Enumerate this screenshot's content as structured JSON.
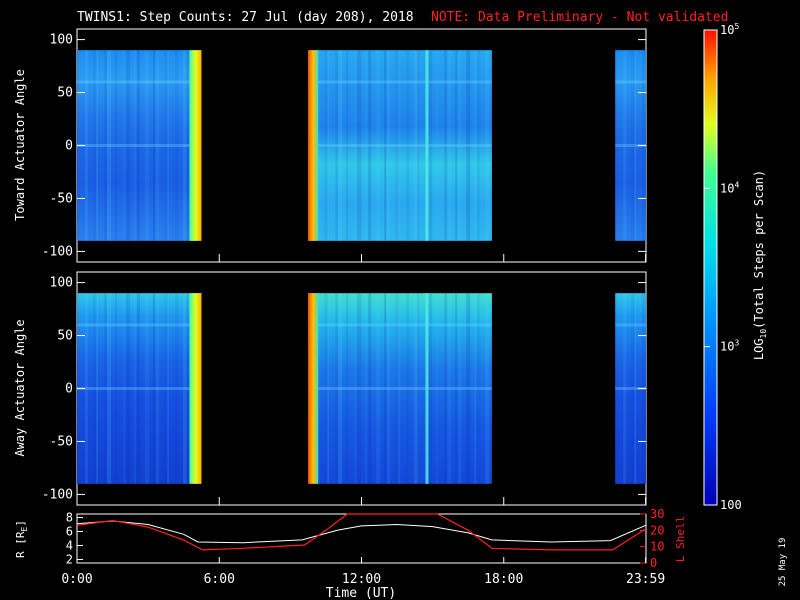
{
  "header": {
    "title": "TWINS1: Step Counts: 27 Jul (day 208), 2018",
    "note": "NOTE: Data Preliminary - Not validated"
  },
  "footer": {
    "date_stamp": "25 May 19"
  },
  "colors": {
    "background": "#000000",
    "axes": "#ffffff",
    "note": "#ff2020",
    "r_line": "#ffffff",
    "lshell_line": "#ff2020"
  },
  "chart_data": [
    {
      "type": "heatmap",
      "panel": "top",
      "ylabel": "Toward Actuator Angle",
      "ylim": [
        -110,
        110
      ],
      "yticks": [
        -100,
        -50,
        0,
        50,
        100
      ],
      "ytick_labels": [
        "-100",
        "-50",
        "0",
        "50",
        "100"
      ],
      "y_data_range": [
        -90,
        90
      ],
      "xlim_hours": [
        0,
        24
      ],
      "data_blocks_hours": [
        [
          0,
          5.25
        ],
        [
          9.75,
          17.5
        ],
        [
          22.7,
          24
        ]
      ],
      "colormap": "rainbow",
      "value_scale": "log"
    },
    {
      "type": "heatmap",
      "panel": "middle",
      "ylabel": "Away Actuator Angle",
      "ylim": [
        -110,
        110
      ],
      "yticks": [
        -100,
        -50,
        0,
        50,
        100
      ],
      "ytick_labels": [
        "-100",
        "-50",
        "0",
        "50",
        "100"
      ],
      "y_data_range": [
        -90,
        90
      ],
      "xlim_hours": [
        0,
        24
      ],
      "data_blocks_hours": [
        [
          0,
          5.25
        ],
        [
          9.75,
          17.5
        ],
        [
          22.7,
          24
        ]
      ],
      "colormap": "rainbow",
      "value_scale": "log"
    },
    {
      "type": "line",
      "panel": "orbit",
      "xlabel": "Time (UT)",
      "x_ticks_hours": [
        0,
        6,
        12,
        18,
        23.983
      ],
      "x_tick_labels": [
        "0:00",
        "6:00",
        "12:00",
        "18:00",
        "23:59"
      ],
      "ylabel_left": "R [R",
      "ylabel_left_sub": "E",
      "ylabel_left_close": "]",
      "ylim_left": [
        1.5,
        8.5
      ],
      "yticks_left": [
        2,
        4,
        6,
        8
      ],
      "ylabel_right": "L Shell",
      "ylim_right": [
        0,
        30
      ],
      "yticks_right": [
        0,
        10,
        20,
        30
      ],
      "series": [
        {
          "axis": "left",
          "x_hours": [
            0,
            1.5,
            3,
            4.5,
            5.1,
            7,
            9.5,
            11,
            12,
            13.5,
            15,
            16.5,
            17.5,
            20,
            22.5,
            24
          ],
          "values": [
            7.1,
            7.5,
            7.0,
            5.6,
            4.5,
            4.4,
            4.8,
            6.2,
            6.8,
            7.0,
            6.7,
            5.8,
            4.8,
            4.5,
            4.7,
            6.9
          ]
        },
        {
          "axis": "right",
          "x_hours": [
            0,
            1.5,
            3,
            4.5,
            5.3,
            7,
            9.6,
            10.5,
            11.4,
            15.2,
            16.5,
            17.5,
            20,
            22.6,
            24
          ],
          "values": [
            23,
            26,
            22,
            14,
            8,
            9,
            11,
            20,
            31,
            31,
            20,
            9,
            8,
            8,
            21
          ]
        }
      ]
    },
    {
      "type": "heatmap",
      "panel": "colorbar",
      "ylabel_prefix": "LOG",
      "ylabel_sub": "10",
      "ylabel_suffix": "(Total Steps per Scan)",
      "value_range": [
        100,
        100000
      ],
      "scale": "log",
      "tick_values": [
        100,
        1000,
        10000,
        100000
      ],
      "tick_labels": [
        {
          "base": "100",
          "exp": ""
        },
        {
          "base": "10",
          "exp": "3"
        },
        {
          "base": "10",
          "exp": "4"
        },
        {
          "base": "10",
          "exp": "5"
        }
      ]
    }
  ]
}
